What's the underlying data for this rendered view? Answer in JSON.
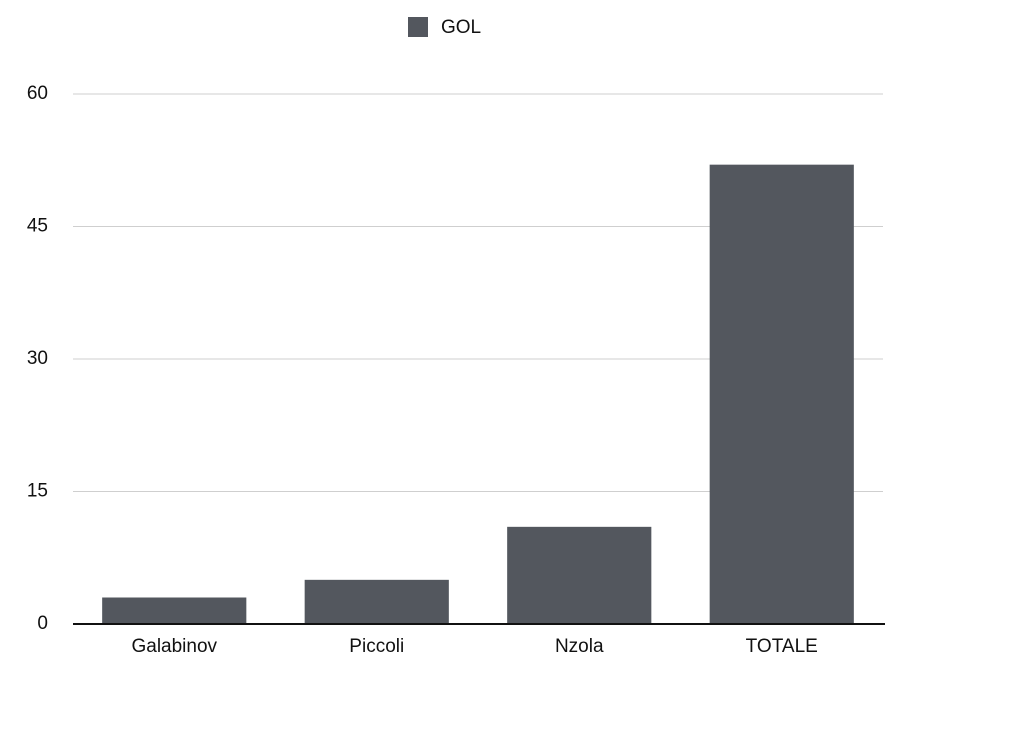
{
  "chart_data": {
    "type": "bar",
    "categories": [
      "Galabinov",
      "Piccoli",
      "Nzola",
      "TOTALE"
    ],
    "series": [
      {
        "name": "GOL",
        "color": "#53575e",
        "values": [
          3,
          5,
          11,
          52
        ]
      }
    ],
    "ylim": [
      0,
      60
    ],
    "yticks": [
      0,
      15,
      30,
      45,
      60
    ],
    "grid": true,
    "legend": "top"
  }
}
